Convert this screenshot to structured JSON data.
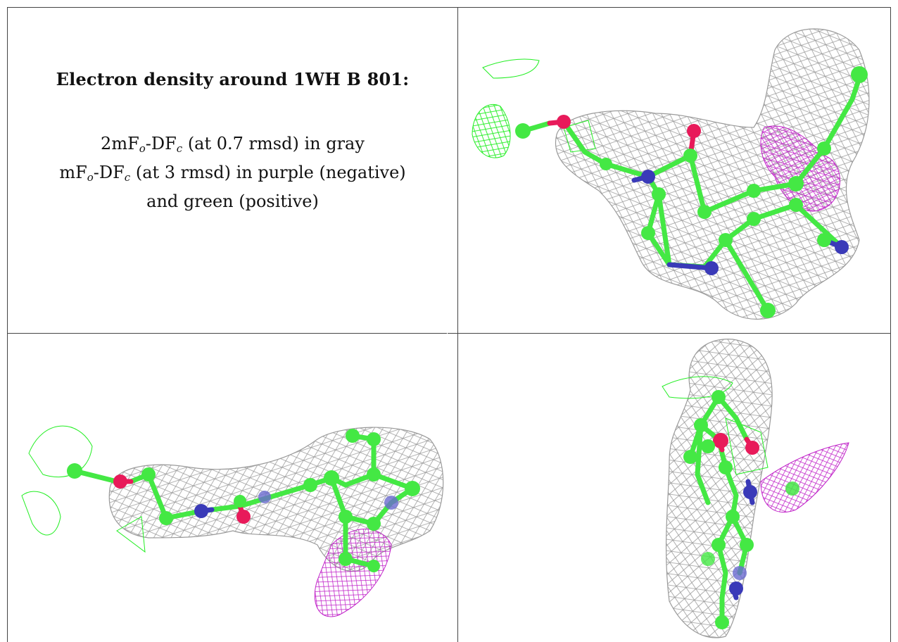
{
  "caption": {
    "title": "Electron density around 1WH B 801:",
    "line1_pre": "2mF",
    "line1_sub1": "o",
    "line1_mid": "-DF",
    "line1_sub2": "c",
    "line1_post": " (at 0.7 rmsd) in gray",
    "line2_pre": "mF",
    "line2_sub1": "o",
    "line2_mid": "-DF",
    "line2_sub2": "c",
    "line2_post": " (at 3 rmsd) in purple (negative)",
    "line3": "and green (positive)"
  },
  "colors": {
    "mesh_gray": "#9a9a9a",
    "mesh_purple": "#c020c8",
    "mesh_green": "#22ee22",
    "carbon": "#44e844",
    "nitrogen": "#3a3ab8",
    "oxygen": "#e81a5a"
  },
  "panels": [
    {
      "name": "view-1"
    },
    {
      "name": "view-2"
    },
    {
      "name": "view-3"
    }
  ]
}
